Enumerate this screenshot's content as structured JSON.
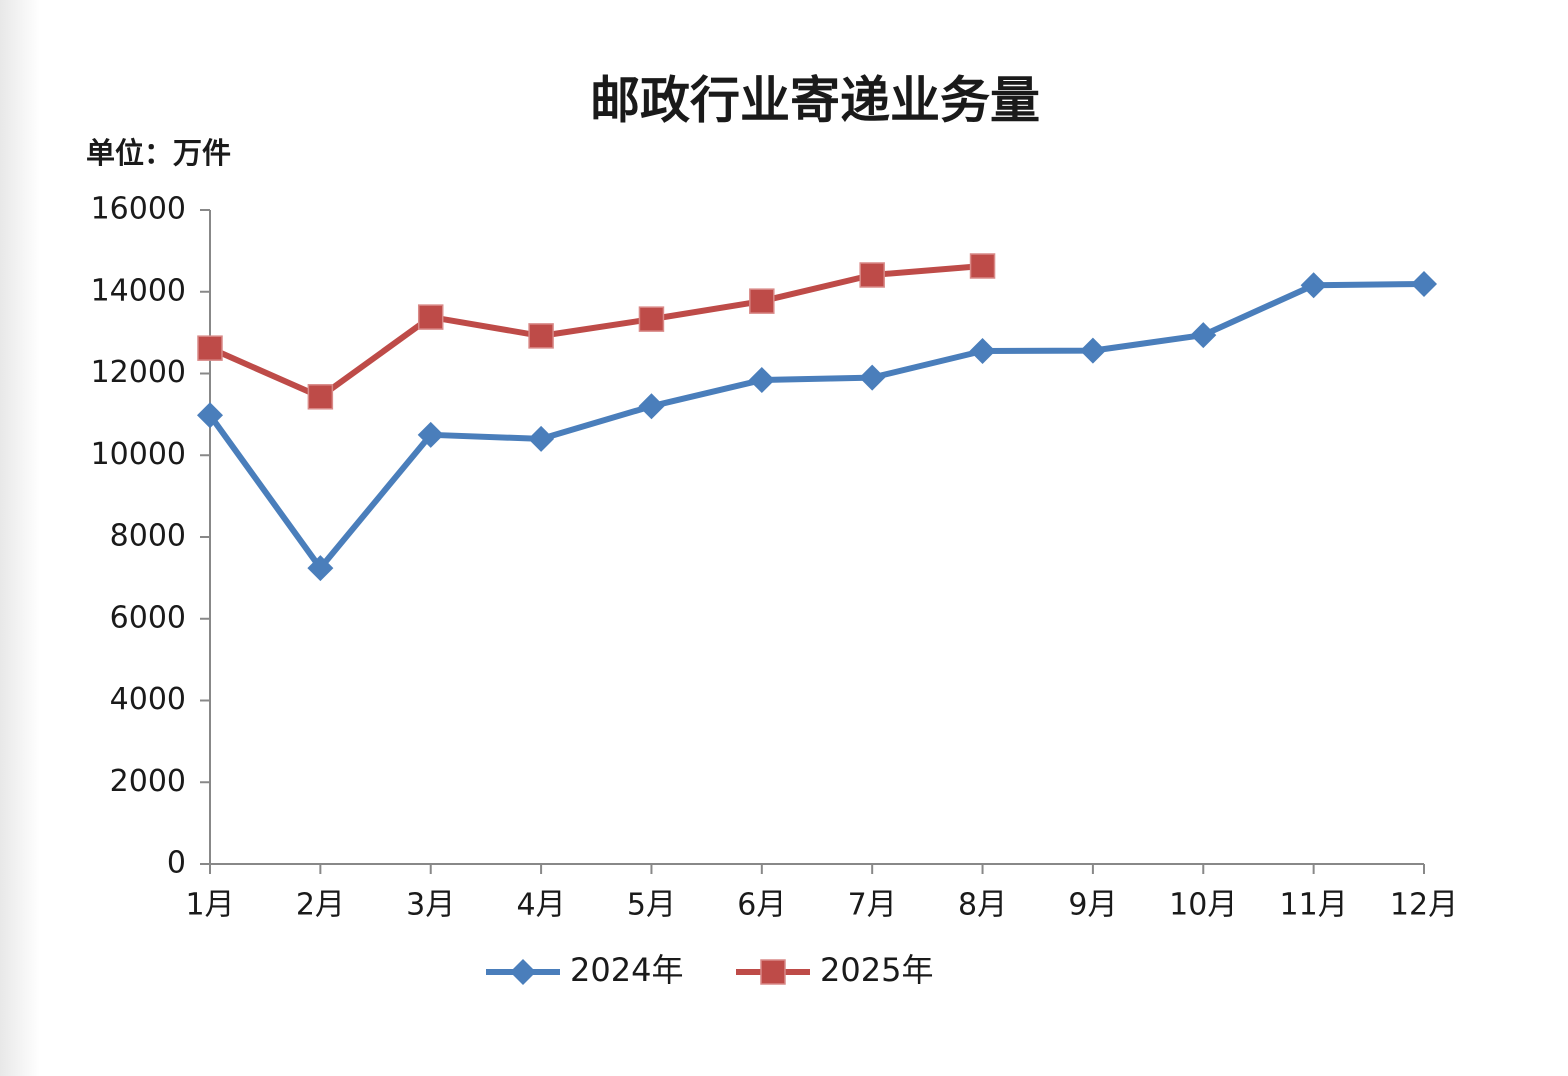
{
  "chart_data": {
    "type": "line",
    "title": "邮政行业寄递业务量",
    "unit_label": "单位：万件",
    "categories": [
      "1月",
      "2月",
      "3月",
      "4月",
      "5月",
      "6月",
      "7月",
      "8月",
      "9月",
      "10月",
      "11月",
      "12月"
    ],
    "series": [
      {
        "name": "2024年",
        "color": "#4a7ebb",
        "marker": "diamond",
        "values": [
          10980,
          7240,
          10500,
          10400,
          11200,
          11840,
          11900,
          12550,
          12560,
          12940,
          14160,
          14190
        ]
      },
      {
        "name": "2025年",
        "color": "#be4b48",
        "marker": "square",
        "values": [
          12620,
          11430,
          13380,
          12920,
          13330,
          13770,
          14410,
          14630,
          null,
          null,
          null,
          null
        ]
      }
    ],
    "ylim": [
      0,
      16000
    ],
    "yticks": [
      0,
      2000,
      4000,
      6000,
      8000,
      10000,
      12000,
      14000,
      16000
    ],
    "grid": false,
    "legend": "bottom"
  }
}
